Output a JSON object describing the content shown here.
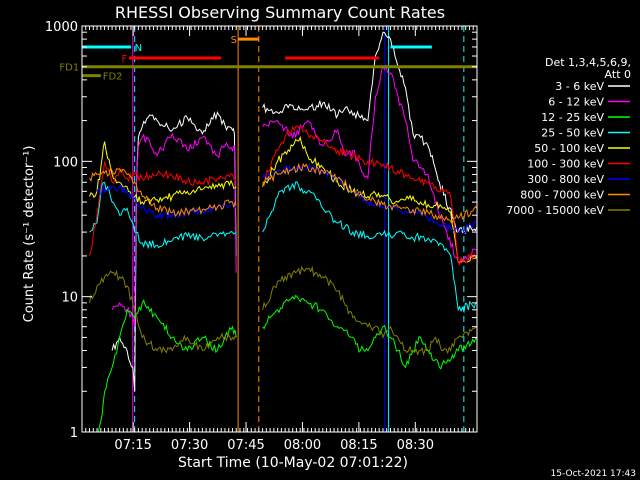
{
  "chart_data": {
    "type": "line",
    "title": "RHESSI Observing Summary Count Rates",
    "xlabel": "Start Time (10-May-02 07:01:22)",
    "ylabel": "Count Rate (s⁻¹ detector⁻¹)",
    "y_scale": "log",
    "ylim": [
      1,
      1000
    ],
    "xlim_minutes": [
      0,
      105
    ],
    "x_ticks": [
      {
        "t": 13.6,
        "label": "07:15"
      },
      {
        "t": 28.6,
        "label": "07:30"
      },
      {
        "t": 43.6,
        "label": "07:45"
      },
      {
        "t": 58.6,
        "label": "08:00"
      },
      {
        "t": 73.6,
        "label": "08:15"
      },
      {
        "t": 88.6,
        "label": "08:30"
      }
    ],
    "y_ticks": [
      {
        "v": 1,
        "label": "1"
      },
      {
        "v": 10,
        "label": "10"
      },
      {
        "v": 100,
        "label": "100"
      },
      {
        "v": 1000,
        "label": "1000"
      }
    ],
    "legend": {
      "header": [
        "Det 1,3,4,5,6,9,",
        "Att 0"
      ],
      "placement": "right"
    },
    "series": [
      {
        "name": "3 - 6 keV",
        "color": "#ffffff",
        "x": [
          0,
          4,
          8,
          10,
          12,
          13.5,
          14,
          14.5,
          15,
          16,
          18,
          20,
          24,
          28,
          32,
          36,
          38,
          40,
          40.5,
          41,
          47,
          48,
          52,
          56,
          60,
          64,
          68,
          70,
          74,
          76,
          78,
          80,
          82,
          84,
          86,
          88,
          90,
          92,
          95,
          100,
          105
        ],
        "y": [
          null,
          null,
          4,
          5,
          4,
          3,
          2,
          70,
          150,
          180,
          220,
          200,
          170,
          210,
          160,
          230,
          185,
          170,
          160,
          20,
          null,
          250,
          230,
          260,
          240,
          270,
          220,
          250,
          210,
          200,
          600,
          900,
          800,
          500,
          350,
          160,
          150,
          130,
          70,
          30,
          33
        ]
      },
      {
        "name": "6 - 12 keV",
        "color": "#ff00ff",
        "x": [
          0,
          8,
          10,
          12,
          13.5,
          14,
          14.5,
          15,
          16,
          18,
          20,
          24,
          28,
          32,
          36,
          38,
          40,
          40.5,
          41,
          47,
          48,
          52,
          56,
          60,
          64,
          68,
          70,
          72,
          74,
          76,
          78,
          80,
          82,
          84,
          86,
          88,
          90,
          92,
          95,
          100,
          105
        ],
        "y": [
          null,
          8,
          9,
          8,
          7,
          6,
          80,
          130,
          150,
          140,
          110,
          160,
          120,
          150,
          110,
          130,
          120,
          130,
          15,
          null,
          180,
          200,
          150,
          200,
          130,
          170,
          110,
          120,
          90,
          75,
          300,
          500,
          450,
          300,
          200,
          100,
          90,
          80,
          40,
          18,
          22
        ]
      },
      {
        "name": "12 - 25 keV",
        "color": "#00ff00",
        "x": [
          0,
          4,
          5,
          6,
          8,
          10,
          12,
          14,
          16,
          20,
          24,
          28,
          32,
          36,
          38,
          40,
          41,
          47,
          48,
          52,
          56,
          60,
          64,
          68,
          72,
          74,
          76,
          78,
          80,
          82,
          84,
          86,
          88,
          90,
          92,
          95,
          100,
          105
        ],
        "y": [
          null,
          1,
          1.2,
          2,
          3,
          5,
          8,
          7,
          9,
          7,
          5,
          4,
          5,
          4,
          5,
          6,
          5,
          null,
          6,
          8,
          10,
          9,
          8,
          6,
          5,
          4,
          4,
          5,
          6,
          5,
          4,
          3,
          4,
          5,
          4,
          3,
          4,
          5
        ]
      },
      {
        "name": "25 - 50 keV",
        "color": "#00ffff",
        "x": [
          0,
          2,
          4,
          5,
          6,
          8,
          10,
          12,
          14,
          16,
          20,
          24,
          28,
          32,
          36,
          40,
          41,
          47,
          48,
          50,
          52,
          56,
          60,
          62,
          64,
          68,
          72,
          76,
          78,
          80,
          82,
          84,
          86,
          88,
          90,
          92,
          94,
          96,
          98,
          100,
          105
        ],
        "y": [
          null,
          30,
          35,
          60,
          70,
          50,
          40,
          45,
          30,
          25,
          24,
          26,
          28,
          27,
          28,
          30,
          30,
          null,
          30,
          40,
          55,
          68,
          60,
          55,
          45,
          35,
          30,
          28,
          28,
          29,
          28,
          30,
          28,
          27,
          28,
          27,
          26,
          24,
          20,
          8,
          9
        ]
      },
      {
        "name": "50 - 100 keV",
        "color": "#ffff00",
        "x": [
          0,
          2,
          4,
          5,
          6,
          8,
          10,
          12,
          14,
          16,
          20,
          24,
          28,
          32,
          36,
          40,
          41,
          47,
          48,
          52,
          56,
          58,
          60,
          64,
          68,
          72,
          76,
          78,
          80,
          82,
          84,
          86,
          88,
          90,
          92,
          94,
          96,
          98,
          100,
          105
        ],
        "y": [
          null,
          55,
          60,
          90,
          140,
          80,
          70,
          65,
          55,
          50,
          52,
          55,
          60,
          62,
          65,
          68,
          65,
          null,
          65,
          100,
          130,
          150,
          110,
          90,
          70,
          60,
          55,
          58,
          55,
          52,
          50,
          52,
          55,
          50,
          48,
          47,
          45,
          42,
          18,
          20
        ]
      },
      {
        "name": "100 - 300 keV",
        "color": "#ff0000",
        "x": [
          0,
          2,
          4,
          6,
          8,
          10,
          12,
          14,
          16,
          20,
          24,
          28,
          32,
          36,
          40,
          41,
          47,
          48,
          52,
          56,
          60,
          64,
          68,
          72,
          76,
          78,
          80,
          82,
          84,
          86,
          88,
          90,
          92,
          94,
          96,
          98,
          100,
          105
        ],
        "y": [
          null,
          20,
          40,
          100,
          70,
          85,
          75,
          80,
          75,
          80,
          78,
          72,
          70,
          75,
          80,
          70,
          null,
          70,
          120,
          180,
          160,
          140,
          120,
          110,
          100,
          95,
          95,
          90,
          85,
          80,
          75,
          70,
          70,
          65,
          60,
          55,
          18,
          20
        ]
      },
      {
        "name": "300 - 800 keV",
        "color": "#0000ff",
        "x": [
          0,
          4,
          8,
          12,
          16,
          20,
          24,
          28,
          32,
          36,
          40,
          41,
          47,
          48,
          52,
          56,
          60,
          64,
          68,
          72,
          76,
          78,
          80,
          82,
          84,
          86,
          88,
          90,
          92,
          94,
          96,
          98,
          100,
          105
        ],
        "y": [
          null,
          60,
          65,
          60,
          45,
          40,
          40,
          42,
          43,
          45,
          50,
          45,
          null,
          75,
          85,
          88,
          90,
          85,
          75,
          60,
          50,
          48,
          45,
          45,
          44,
          43,
          42,
          40,
          38,
          36,
          34,
          32,
          30,
          35
        ]
      },
      {
        "name": "800 - 7000 keV",
        "color": "#ff8c00",
        "x": [
          0,
          2,
          4,
          6,
          8,
          10,
          12,
          14,
          16,
          20,
          24,
          28,
          32,
          36,
          40,
          41,
          47,
          48,
          52,
          56,
          60,
          64,
          68,
          72,
          76,
          78,
          80,
          82,
          84,
          86,
          88,
          90,
          92,
          94,
          96,
          98,
          100,
          105
        ],
        "y": [
          null,
          75,
          80,
          82,
          85,
          88,
          80,
          70,
          55,
          45,
          42,
          43,
          44,
          46,
          50,
          47,
          null,
          70,
          80,
          88,
          90,
          85,
          75,
          60,
          52,
          50,
          48,
          47,
          46,
          45,
          44,
          43,
          42,
          40,
          38,
          36,
          38,
          45
        ]
      },
      {
        "name": "7000 - 15000 keV",
        "color": "#808000",
        "x": [
          0,
          2,
          4,
          6,
          8,
          10,
          12,
          14,
          16,
          20,
          24,
          28,
          32,
          36,
          40,
          41,
          47,
          48,
          52,
          56,
          60,
          64,
          68,
          72,
          76,
          78,
          80,
          82,
          84,
          86,
          88,
          90,
          92,
          94,
          96,
          98,
          100,
          105
        ],
        "y": [
          null,
          9,
          12,
          14,
          15,
          14,
          12,
          8,
          5,
          4,
          4,
          5,
          4,
          5,
          5,
          5,
          null,
          8,
          13,
          15,
          16,
          14,
          11,
          7,
          6,
          6,
          5,
          6,
          5,
          4,
          4,
          4,
          4,
          5,
          4,
          4,
          5,
          6
        ]
      }
    ],
    "state_bars": [
      {
        "label": "N",
        "color": "#00ffff",
        "y": 700,
        "ranges": [
          [
            0,
            13
          ],
          [
            82,
            93
          ]
        ],
        "label_at": 14
      },
      {
        "label": "F",
        "color": "#ff0000",
        "y": 580,
        "ranges": [
          [
            12.5,
            37
          ],
          [
            54,
            79
          ]
        ],
        "label_at": 10.5
      },
      {
        "label": "S",
        "color": "#ff8c00",
        "y": 800,
        "ranges": [
          [
            41.5,
            47
          ]
        ],
        "label_at": 39.5
      },
      {
        "label": "FD1",
        "color": "#808000",
        "y": 500,
        "ranges": [
          [
            0,
            105
          ]
        ],
        "label_at": -6
      },
      {
        "label": "FD2",
        "color": "#808000",
        "y": 430,
        "ranges": [
          [
            0,
            5
          ]
        ],
        "label_at": 5.5
      }
    ],
    "vertical_lines": [
      {
        "t": 13.5,
        "color": "#ff00ff",
        "style": "solid"
      },
      {
        "t": 14.0,
        "color": "#00ffff",
        "style": "dashed"
      },
      {
        "t": 41.5,
        "color": "#ff8c00",
        "style": "solid"
      },
      {
        "t": 47.0,
        "color": "#ff8c00",
        "style": "dashed"
      },
      {
        "t": 80.5,
        "color": "#0000ff",
        "style": "solid"
      },
      {
        "t": 81.5,
        "color": "#00ffff",
        "style": "solid"
      },
      {
        "t": 101.5,
        "color": "#00ffff",
        "style": "dashed"
      }
    ],
    "footer_timestamp": "15-Oct-2021 17:43",
    "grid": false
  }
}
